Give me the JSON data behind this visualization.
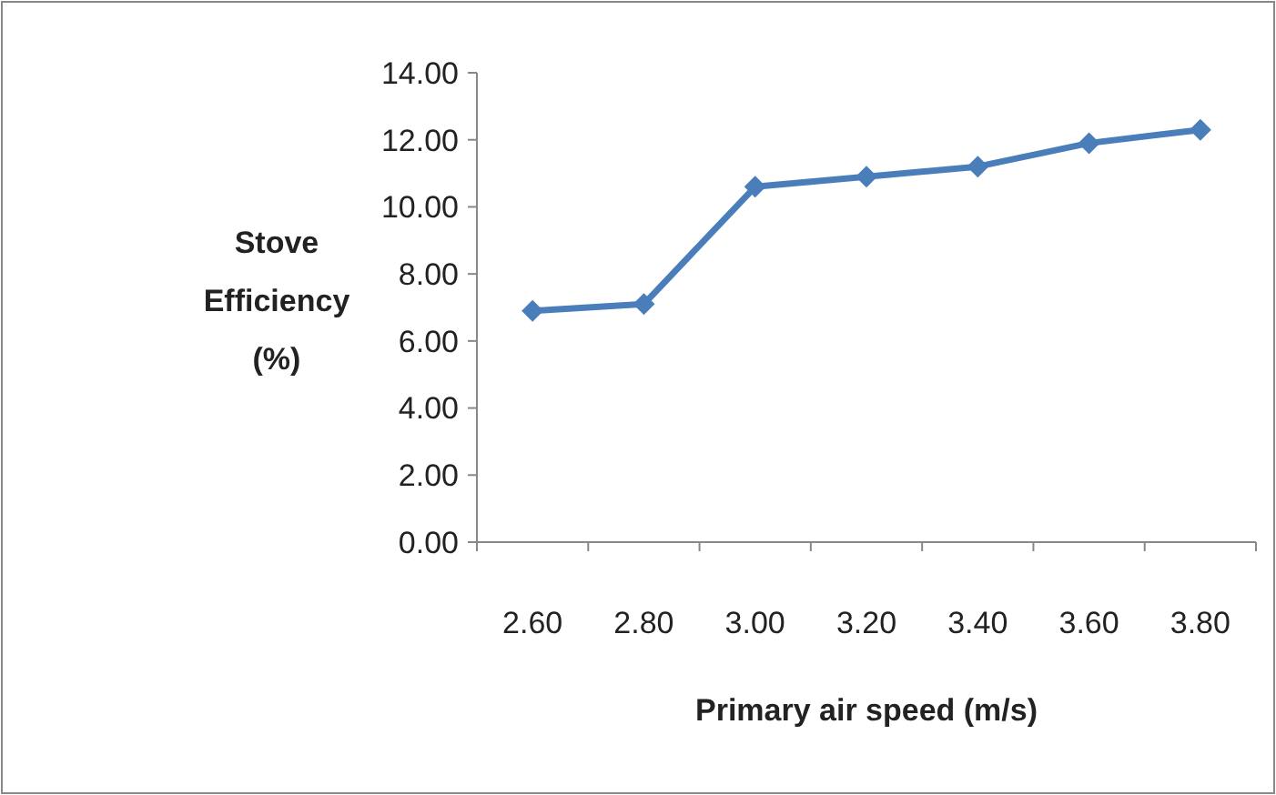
{
  "chart_data": {
    "type": "line",
    "xlabel": "Primary air speed (m/s)",
    "ylabel": "Stove Efficiency (%)",
    "categories": [
      "2.60",
      "2.80",
      "3.00",
      "3.20",
      "3.40",
      "3.60",
      "3.80"
    ],
    "series": [
      {
        "color": "#4a7ebb",
        "values": [
          6.9,
          7.1,
          10.6,
          10.9,
          11.2,
          11.9,
          12.3
        ]
      }
    ],
    "ylim": [
      0,
      14
    ],
    "yticks": [
      {
        "value": 0,
        "label": "0.00"
      },
      {
        "value": 2,
        "label": "2.00"
      },
      {
        "value": 4,
        "label": "4.00"
      },
      {
        "value": 6,
        "label": "6.00"
      },
      {
        "value": 8,
        "label": "8.00"
      },
      {
        "value": 10,
        "label": "10.00"
      },
      {
        "value": 12,
        "label": "12.00"
      },
      {
        "value": 14,
        "label": "14.00"
      }
    ],
    "grid": false,
    "marker": "diamond",
    "line_style": "solid"
  }
}
